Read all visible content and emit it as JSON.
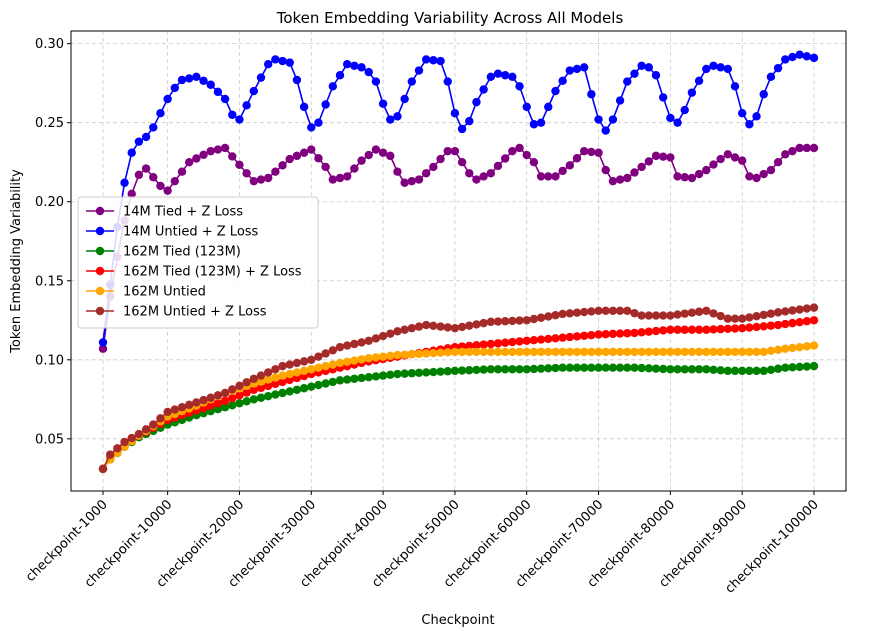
{
  "chart_data": {
    "type": "line",
    "title": "Token Embedding Variability Across All Models",
    "xlabel": "Checkpoint",
    "ylabel": "Token Embedding Variability",
    "categories": [
      "checkpoint-1000",
      "checkpoint-10000",
      "checkpoint-20000",
      "checkpoint-30000",
      "checkpoint-40000",
      "checkpoint-50000",
      "checkpoint-60000",
      "checkpoint-70000",
      "checkpoint-80000",
      "checkpoint-90000",
      "checkpoint-100000"
    ],
    "x_range": [
      1000,
      100000
    ],
    "x_step": 1000,
    "ylim": [
      0.017,
      0.308
    ],
    "yticks": [
      0.05,
      0.1,
      0.15,
      0.2,
      0.25,
      0.3
    ],
    "ytick_labels": [
      "0.05",
      "0.10",
      "0.15",
      "0.20",
      "0.25",
      "0.30"
    ],
    "grid": true,
    "legend_position": "center-left",
    "series": [
      {
        "name": "14M Tied + Z Loss",
        "color": "#800080",
        "control": [
          [
            1000,
            0.107
          ],
          [
            2000,
            0.14
          ],
          [
            3000,
            0.165
          ],
          [
            4000,
            0.188
          ],
          [
            5000,
            0.205
          ],
          [
            6000,
            0.217
          ],
          [
            7000,
            0.221
          ],
          [
            9000,
            0.21
          ],
          [
            10000,
            0.207
          ],
          [
            13000,
            0.225
          ],
          [
            16000,
            0.232
          ],
          [
            18000,
            0.234
          ],
          [
            21000,
            0.218
          ],
          [
            22000,
            0.213
          ],
          [
            24000,
            0.215
          ],
          [
            27000,
            0.227
          ],
          [
            30000,
            0.233
          ],
          [
            32000,
            0.222
          ],
          [
            33000,
            0.214
          ],
          [
            35000,
            0.216
          ],
          [
            37000,
            0.226
          ],
          [
            39000,
            0.233
          ],
          [
            41000,
            0.229
          ],
          [
            42000,
            0.219
          ],
          [
            43000,
            0.212
          ],
          [
            45000,
            0.214
          ],
          [
            47000,
            0.222
          ],
          [
            49000,
            0.232
          ],
          [
            50000,
            0.232
          ],
          [
            52000,
            0.218
          ],
          [
            53000,
            0.214
          ],
          [
            55000,
            0.218
          ],
          [
            58000,
            0.232
          ],
          [
            59000,
            0.234
          ],
          [
            61000,
            0.225
          ],
          [
            62000,
            0.216
          ],
          [
            64000,
            0.216
          ],
          [
            66000,
            0.223
          ],
          [
            68000,
            0.232
          ],
          [
            70000,
            0.231
          ],
          [
            71000,
            0.22
          ],
          [
            72000,
            0.213
          ],
          [
            74000,
            0.215
          ],
          [
            76000,
            0.222
          ],
          [
            78000,
            0.229
          ],
          [
            80000,
            0.228
          ],
          [
            81000,
            0.216
          ],
          [
            83000,
            0.215
          ],
          [
            85000,
            0.22
          ],
          [
            87000,
            0.227
          ],
          [
            88000,
            0.23
          ],
          [
            90000,
            0.226
          ],
          [
            91000,
            0.216
          ],
          [
            92000,
            0.215
          ],
          [
            94000,
            0.22
          ],
          [
            96000,
            0.23
          ],
          [
            98000,
            0.234
          ],
          [
            100000,
            0.234
          ]
        ]
      },
      {
        "name": "14M Untied + Z Loss",
        "color": "#0000ff",
        "control": [
          [
            1000,
            0.111
          ],
          [
            3000,
            0.184
          ],
          [
            4000,
            0.212
          ],
          [
            5000,
            0.231
          ],
          [
            6000,
            0.238
          ],
          [
            7000,
            0.241
          ],
          [
            8000,
            0.247
          ],
          [
            9000,
            0.256
          ],
          [
            10000,
            0.265
          ],
          [
            11000,
            0.272
          ],
          [
            12000,
            0.277
          ],
          [
            14000,
            0.279
          ],
          [
            16000,
            0.274
          ],
          [
            18000,
            0.265
          ],
          [
            19000,
            0.255
          ],
          [
            20000,
            0.252
          ],
          [
            22000,
            0.27
          ],
          [
            24000,
            0.287
          ],
          [
            25000,
            0.29
          ],
          [
            27000,
            0.288
          ],
          [
            28000,
            0.277
          ],
          [
            29000,
            0.26
          ],
          [
            30000,
            0.247
          ],
          [
            31000,
            0.25
          ],
          [
            33000,
            0.273
          ],
          [
            35000,
            0.287
          ],
          [
            37000,
            0.285
          ],
          [
            38000,
            0.282
          ],
          [
            39000,
            0.276
          ],
          [
            40000,
            0.262
          ],
          [
            41000,
            0.252
          ],
          [
            42000,
            0.254
          ],
          [
            44000,
            0.276
          ],
          [
            46000,
            0.29
          ],
          [
            48000,
            0.289
          ],
          [
            49000,
            0.276
          ],
          [
            50000,
            0.256
          ],
          [
            51000,
            0.246
          ],
          [
            52000,
            0.251
          ],
          [
            53000,
            0.263
          ],
          [
            55000,
            0.279
          ],
          [
            56000,
            0.281
          ],
          [
            58000,
            0.279
          ],
          [
            59000,
            0.273
          ],
          [
            60000,
            0.26
          ],
          [
            61000,
            0.249
          ],
          [
            62000,
            0.25
          ],
          [
            64000,
            0.27
          ],
          [
            66000,
            0.283
          ],
          [
            68000,
            0.285
          ],
          [
            69000,
            0.268
          ],
          [
            70000,
            0.252
          ],
          [
            71000,
            0.245
          ],
          [
            72000,
            0.252
          ],
          [
            74000,
            0.276
          ],
          [
            76000,
            0.286
          ],
          [
            77000,
            0.285
          ],
          [
            78000,
            0.28
          ],
          [
            79000,
            0.266
          ],
          [
            80000,
            0.253
          ],
          [
            81000,
            0.25
          ],
          [
            82000,
            0.258
          ],
          [
            83000,
            0.269
          ],
          [
            85000,
            0.284
          ],
          [
            86000,
            0.286
          ],
          [
            88000,
            0.284
          ],
          [
            89000,
            0.273
          ],
          [
            90000,
            0.256
          ],
          [
            91000,
            0.249
          ],
          [
            92000,
            0.254
          ],
          [
            93000,
            0.268
          ],
          [
            94000,
            0.279
          ],
          [
            96000,
            0.29
          ],
          [
            98000,
            0.293
          ],
          [
            100000,
            0.291
          ]
        ]
      },
      {
        "name": "162M Tied (123M)",
        "color": "#008000",
        "control": [
          [
            1000,
            0.031
          ],
          [
            2000,
            0.037
          ],
          [
            4000,
            0.045
          ],
          [
            6000,
            0.051
          ],
          [
            8000,
            0.055
          ],
          [
            10000,
            0.059
          ],
          [
            14000,
            0.065
          ],
          [
            18000,
            0.07
          ],
          [
            22000,
            0.075
          ],
          [
            26000,
            0.079
          ],
          [
            30000,
            0.083
          ],
          [
            34000,
            0.087
          ],
          [
            38000,
            0.089
          ],
          [
            42000,
            0.091
          ],
          [
            46000,
            0.092
          ],
          [
            50000,
            0.093
          ],
          [
            55000,
            0.094
          ],
          [
            60000,
            0.094
          ],
          [
            65000,
            0.095
          ],
          [
            70000,
            0.095
          ],
          [
            75000,
            0.095
          ],
          [
            80000,
            0.094
          ],
          [
            85000,
            0.094
          ],
          [
            88000,
            0.093
          ],
          [
            90000,
            0.093
          ],
          [
            93000,
            0.093
          ],
          [
            96000,
            0.095
          ],
          [
            100000,
            0.096
          ]
        ]
      },
      {
        "name": "162M Tied (123M) + Z Loss",
        "color": "#ff0000",
        "control": [
          [
            1000,
            0.031
          ],
          [
            2000,
            0.038
          ],
          [
            4000,
            0.046
          ],
          [
            6000,
            0.052
          ],
          [
            8000,
            0.057
          ],
          [
            10000,
            0.062
          ],
          [
            14000,
            0.068
          ],
          [
            18000,
            0.074
          ],
          [
            22000,
            0.081
          ],
          [
            26000,
            0.086
          ],
          [
            30000,
            0.091
          ],
          [
            34000,
            0.095
          ],
          [
            38000,
            0.099
          ],
          [
            42000,
            0.102
          ],
          [
            46000,
            0.105
          ],
          [
            50000,
            0.108
          ],
          [
            55000,
            0.11
          ],
          [
            60000,
            0.112
          ],
          [
            65000,
            0.114
          ],
          [
            70000,
            0.116
          ],
          [
            75000,
            0.117
          ],
          [
            80000,
            0.119
          ],
          [
            85000,
            0.119
          ],
          [
            90000,
            0.12
          ],
          [
            95000,
            0.122
          ],
          [
            100000,
            0.125
          ]
        ]
      },
      {
        "name": "162M Untied",
        "color": "#ffa500",
        "control": [
          [
            1000,
            0.031
          ],
          [
            2000,
            0.037
          ],
          [
            4000,
            0.045
          ],
          [
            6000,
            0.052
          ],
          [
            8000,
            0.058
          ],
          [
            10000,
            0.064
          ],
          [
            14000,
            0.071
          ],
          [
            18000,
            0.079
          ],
          [
            22000,
            0.085
          ],
          [
            26000,
            0.09
          ],
          [
            30000,
            0.094
          ],
          [
            34000,
            0.098
          ],
          [
            38000,
            0.101
          ],
          [
            42000,
            0.103
          ],
          [
            46000,
            0.104
          ],
          [
            50000,
            0.105
          ],
          [
            55000,
            0.105
          ],
          [
            60000,
            0.105
          ],
          [
            65000,
            0.105
          ],
          [
            70000,
            0.105
          ],
          [
            75000,
            0.105
          ],
          [
            80000,
            0.105
          ],
          [
            85000,
            0.105
          ],
          [
            90000,
            0.105
          ],
          [
            93000,
            0.105
          ],
          [
            96000,
            0.107
          ],
          [
            100000,
            0.109
          ]
        ]
      },
      {
        "name": "162M Untied + Z Loss",
        "color": "#a52a2a",
        "control": [
          [
            1000,
            0.031
          ],
          [
            2000,
            0.04
          ],
          [
            4000,
            0.048
          ],
          [
            6000,
            0.053
          ],
          [
            8000,
            0.059
          ],
          [
            10000,
            0.067
          ],
          [
            14000,
            0.073
          ],
          [
            18000,
            0.079
          ],
          [
            22000,
            0.088
          ],
          [
            26000,
            0.096
          ],
          [
            30000,
            0.1
          ],
          [
            34000,
            0.108
          ],
          [
            38000,
            0.112
          ],
          [
            42000,
            0.118
          ],
          [
            46000,
            0.122
          ],
          [
            50000,
            0.12
          ],
          [
            55000,
            0.124
          ],
          [
            60000,
            0.125
          ],
          [
            65000,
            0.129
          ],
          [
            70000,
            0.131
          ],
          [
            74000,
            0.131
          ],
          [
            76000,
            0.128
          ],
          [
            80000,
            0.128
          ],
          [
            85000,
            0.131
          ],
          [
            88000,
            0.126
          ],
          [
            90000,
            0.126
          ],
          [
            95000,
            0.13
          ],
          [
            100000,
            0.133
          ]
        ]
      }
    ]
  }
}
